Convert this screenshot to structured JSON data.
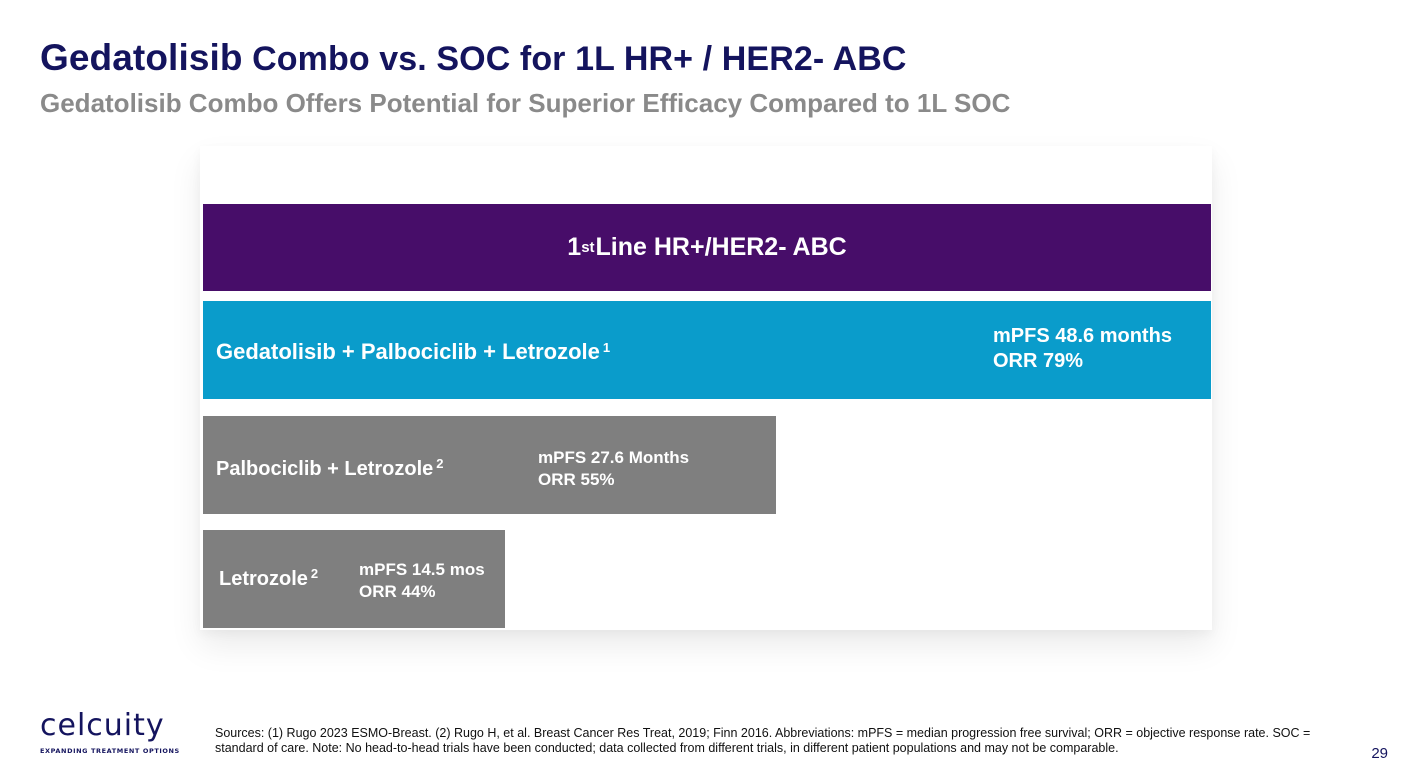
{
  "slide": {
    "title_lead": "Gedatolisib",
    "title_rest": " Combo vs. SOC for 1L HR+ / HER2- ABC",
    "subtitle": "Gedatolisib Combo Offers Potential for Superior Efficacy Compared to 1L SOC",
    "page_number": "29"
  },
  "table": {
    "header_ordinal": "1",
    "header_superscript": "st",
    "header_text": " Line HR+/HER2- ABC",
    "header_color": "#470d69",
    "rows": [
      {
        "arm": "Gedatolisib + Palbociclib + Letrozole",
        "ref": "1",
        "mpfs": "mPFS 48.6 months",
        "orr": "ORR 79%",
        "color": "#0a9ccb"
      },
      {
        "arm": "Palbociclib + Letrozole",
        "ref": "2",
        "mpfs": "mPFS 27.6 Months",
        "orr": "ORR 55%",
        "color": "#7f7f7f"
      },
      {
        "arm": "Letrozole",
        "ref": "2",
        "mpfs": "mPFS 14.5 mos",
        "orr": "ORR 44%",
        "color": "#7f7f7f"
      }
    ]
  },
  "footer": {
    "logo_text": "celcuity",
    "logo_tagline": "EXPANDING TREATMENT OPTIONS",
    "sources": "Sources: (1) Rugo 2023 ESMO-Breast. (2) Rugo H, et al. Breast Cancer Res Treat, 2019; Finn 2016. Abbreviations: mPFS = median progression free survival; ORR = objective response rate. SOC = standard of care. Note: No head-to-head trials have been conducted; data collected from different trials, in different patient populations and may not be comparable."
  }
}
